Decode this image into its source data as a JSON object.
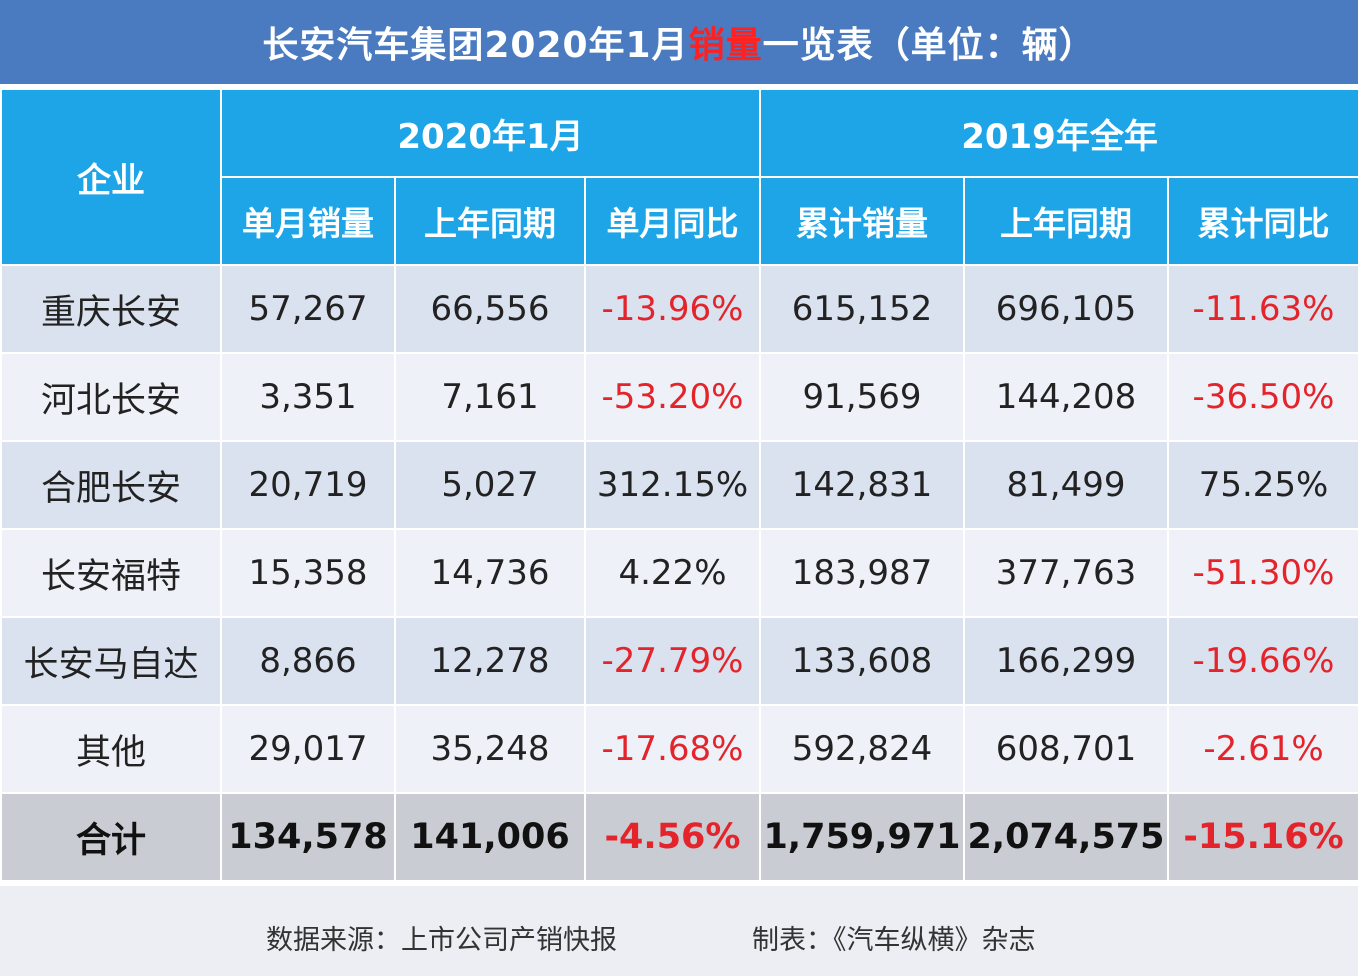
{
  "title": {
    "before": "长安汽车集团2020年1月",
    "highlight": "销量",
    "after": "一览表（单位：辆）"
  },
  "headers": {
    "company": "企业",
    "group_2020": "2020年1月",
    "group_2019": "2019年全年",
    "columns": [
      "单月销量",
      "上年同期",
      "单月同比",
      "累计销量",
      "上年同期",
      "累计同比"
    ]
  },
  "rows": [
    {
      "name": "重庆长安",
      "values": [
        "57,267",
        "66,556",
        "-13.96%",
        "615,152",
        "696,105",
        "-11.63%"
      ]
    },
    {
      "name": "河北长安",
      "values": [
        "3,351",
        "7,161",
        "-53.20%",
        "91,569",
        "144,208",
        "-36.50%"
      ]
    },
    {
      "name": "合肥长安",
      "values": [
        "20,719",
        "5,027",
        "312.15%",
        "142,831",
        "81,499",
        "75.25%"
      ]
    },
    {
      "name": "长安福特",
      "values": [
        "15,358",
        "14,736",
        "4.22%",
        "183,987",
        "377,763",
        "-51.30%"
      ]
    },
    {
      "name": "长安马自达",
      "values": [
        "8,866",
        "12,278",
        "-27.79%",
        "133,608",
        "166,299",
        "-19.66%"
      ]
    },
    {
      "name": "其他",
      "values": [
        "29,017",
        "35,248",
        "-17.68%",
        "592,824",
        "608,701",
        "-2.61%"
      ]
    }
  ],
  "total": {
    "name": "合计",
    "values": [
      "134,578",
      "141,006",
      "-4.56%",
      "1,759,971",
      "2,074,575",
      "-15.16%"
    ]
  },
  "footer": {
    "source": "数据来源：上市公司产销快报",
    "maker": "制表：《汽车纵横》杂志"
  },
  "colors": {
    "title_bg": "#4a7bc1",
    "header_bg": "#1ea5e8",
    "negative": "#e4242b",
    "row_odd": "#dbe2ef",
    "row_even": "#eef1f7",
    "total_bg": "#c9ccd2"
  }
}
